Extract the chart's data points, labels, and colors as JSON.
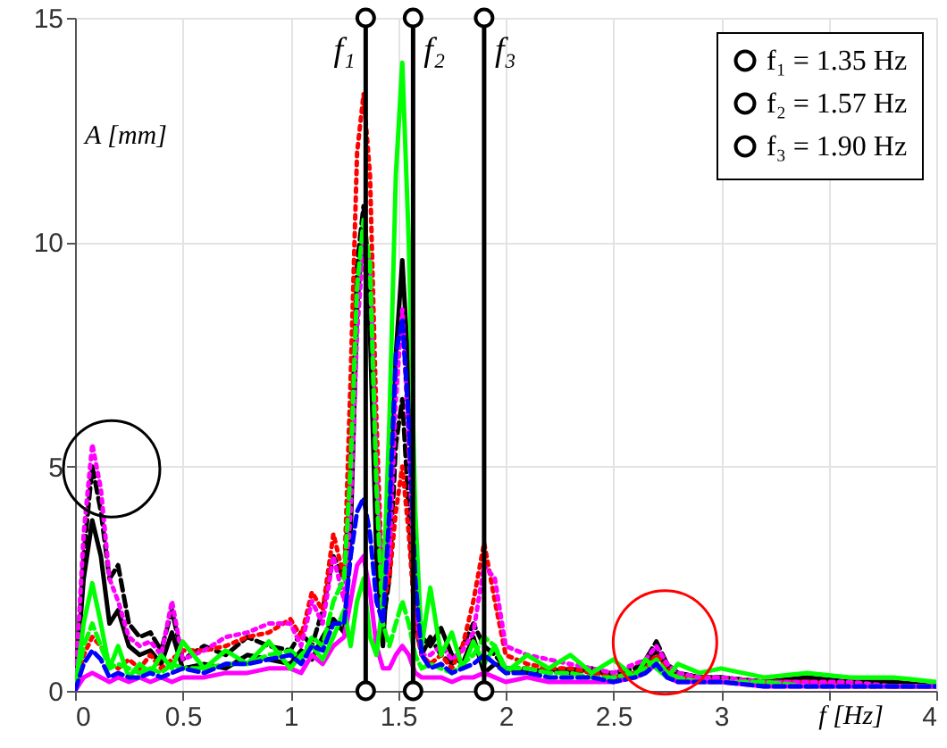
{
  "chart_data": {
    "type": "line",
    "xlabel": "f [Hz]",
    "ylabel": "A [mm]",
    "x": [
      0,
      0.04,
      0.08,
      0.12,
      0.16,
      0.2,
      0.25,
      0.3,
      0.35,
      0.4,
      0.45,
      0.5,
      0.6,
      0.7,
      0.8,
      0.9,
      1.0,
      1.05,
      1.1,
      1.15,
      1.2,
      1.25,
      1.28,
      1.31,
      1.34,
      1.37,
      1.4,
      1.43,
      1.46,
      1.49,
      1.52,
      1.55,
      1.58,
      1.61,
      1.65,
      1.7,
      1.75,
      1.8,
      1.85,
      1.9,
      1.95,
      2.0,
      2.1,
      2.2,
      2.3,
      2.4,
      2.5,
      2.6,
      2.65,
      2.7,
      2.75,
      2.8,
      2.9,
      3.0,
      3.2,
      3.4,
      3.6,
      3.8,
      4.0
    ],
    "series": [
      {
        "color": "#000000",
        "line_style": "solid",
        "values": [
          0,
          2.5,
          3.8,
          3.0,
          1.5,
          1.8,
          1.0,
          0.8,
          0.9,
          0.6,
          1.3,
          0.5,
          0.6,
          0.5,
          0.8,
          0.7,
          0.6,
          0.9,
          0.7,
          1.2,
          1.6,
          1.3,
          3.5,
          8.5,
          10.5,
          8.0,
          3.0,
          1.0,
          3.5,
          7.5,
          9.6,
          7.0,
          3.0,
          1.2,
          1.0,
          1.4,
          0.8,
          0.6,
          1.2,
          0.4,
          0.6,
          0.5,
          0.4,
          0.5,
          0.4,
          0.5,
          0.3,
          0.4,
          0.6,
          0.9,
          0.5,
          0.4,
          0.3,
          0.3,
          0.2,
          0.3,
          0.2,
          0.2,
          0.1
        ]
      },
      {
        "color": "#000000",
        "line_style": "dashed",
        "values": [
          0,
          3.0,
          5.0,
          4.0,
          2.5,
          2.8,
          1.5,
          1.2,
          1.3,
          0.9,
          1.8,
          0.7,
          1.0,
          0.8,
          1.2,
          1.0,
          0.9,
          1.3,
          1.0,
          1.8,
          3.0,
          2.5,
          5.0,
          9.5,
          10.8,
          9.0,
          4.0,
          1.5,
          2.5,
          5.5,
          6.5,
          4.0,
          1.5,
          0.8,
          1.2,
          0.8,
          0.6,
          1.0,
          1.5,
          1.0,
          0.8,
          0.5,
          0.5,
          0.4,
          0.5,
          0.4,
          0.4,
          0.5,
          0.7,
          1.1,
          0.6,
          0.4,
          0.3,
          0.3,
          0.2,
          0.2,
          0.2,
          0.1,
          0.1
        ]
      },
      {
        "color": "#ff0000",
        "line_style": "dotted",
        "values": [
          0,
          0.8,
          1.2,
          1.0,
          0.6,
          0.5,
          0.7,
          0.5,
          0.8,
          0.5,
          0.7,
          0.9,
          0.9,
          1.0,
          1.2,
          1.3,
          1.6,
          1.2,
          2.2,
          1.8,
          3.5,
          2.5,
          7.0,
          12.0,
          13.3,
          11.5,
          6.0,
          2.0,
          2.5,
          4.0,
          5.0,
          3.5,
          1.5,
          0.8,
          0.6,
          0.8,
          0.5,
          1.0,
          2.0,
          3.3,
          2.0,
          0.8,
          0.6,
          0.5,
          0.5,
          0.4,
          0.3,
          0.4,
          0.5,
          0.8,
          0.5,
          0.3,
          0.3,
          0.2,
          0.2,
          0.2,
          0.1,
          0.1,
          0.1
        ]
      },
      {
        "color": "#ff00ff",
        "line_style": "dotted",
        "values": [
          0,
          3.5,
          5.5,
          4.5,
          2.5,
          2.0,
          1.2,
          1.0,
          1.1,
          0.8,
          2.0,
          0.7,
          0.9,
          1.2,
          1.3,
          1.5,
          1.5,
          1.0,
          2.0,
          1.5,
          3.0,
          2.0,
          4.0,
          8.0,
          10.0,
          9.5,
          5.0,
          2.0,
          3.0,
          6.5,
          8.5,
          5.5,
          2.0,
          0.8,
          0.8,
          1.0,
          0.7,
          0.9,
          1.3,
          2.8,
          2.5,
          1.0,
          0.8,
          0.7,
          0.6,
          0.5,
          0.4,
          0.6,
          0.7,
          1.0,
          0.6,
          0.4,
          0.3,
          0.3,
          0.2,
          0.2,
          0.2,
          0.1,
          0.1
        ]
      },
      {
        "color": "#00ff00",
        "line_style": "dashed",
        "values": [
          0,
          1.0,
          1.5,
          1.0,
          0.5,
          0.6,
          0.5,
          0.4,
          0.5,
          0.4,
          0.6,
          0.5,
          0.5,
          0.6,
          0.6,
          0.8,
          0.9,
          0.7,
          1.2,
          1.0,
          2.0,
          2.5,
          5.0,
          9.0,
          10.5,
          9.5,
          4.5,
          1.5,
          1.0,
          1.5,
          2.0,
          1.5,
          0.8,
          0.5,
          0.6,
          0.5,
          0.4,
          0.6,
          0.8,
          1.2,
          1.0,
          0.5,
          0.5,
          0.4,
          0.4,
          0.3,
          0.3,
          0.4,
          0.5,
          0.7,
          0.4,
          0.3,
          0.2,
          0.2,
          0.2,
          0.1,
          0.1,
          0.1,
          0.1
        ]
      },
      {
        "color": "#ff00ff",
        "line_style": "solid",
        "values": [
          0,
          0.3,
          0.4,
          0.3,
          0.2,
          0.3,
          0.2,
          0.3,
          0.2,
          0.3,
          0.2,
          0.3,
          0.3,
          0.4,
          0.4,
          0.5,
          0.5,
          0.4,
          0.8,
          0.6,
          1.0,
          1.2,
          2.0,
          2.8,
          3.0,
          2.2,
          1.0,
          0.5,
          0.5,
          0.8,
          1.0,
          0.8,
          0.4,
          0.3,
          0.3,
          0.3,
          0.2,
          0.3,
          0.3,
          0.4,
          0.3,
          0.2,
          0.3,
          0.2,
          0.2,
          0.2,
          0.2,
          0.3,
          0.4,
          0.6,
          0.3,
          0.2,
          0.2,
          0.2,
          0.1,
          0.1,
          0.1,
          0.1,
          0.1
        ]
      },
      {
        "color": "#00ff00",
        "line_style": "solid",
        "values": [
          0,
          1.5,
          2.4,
          1.5,
          0.5,
          1.0,
          0.3,
          0.6,
          0.4,
          0.8,
          0.5,
          1.1,
          0.5,
          0.9,
          0.6,
          1.1,
          0.5,
          0.8,
          1.0,
          0.7,
          1.2,
          1.8,
          1.0,
          2.0,
          2.5,
          1.2,
          0.8,
          2.0,
          6.0,
          11.5,
          14.0,
          10.0,
          4.0,
          1.0,
          2.3,
          0.8,
          1.3,
          0.5,
          1.1,
          0.6,
          1.0,
          0.4,
          0.8,
          0.5,
          0.8,
          0.4,
          0.7,
          0.3,
          0.7,
          0.5,
          0.3,
          0.6,
          0.4,
          0.5,
          0.3,
          0.4,
          0.3,
          0.3,
          0.2
        ]
      },
      {
        "color": "#0000ff",
        "line_style": "dashed",
        "values": [
          0,
          0.6,
          0.9,
          0.7,
          0.3,
          0.4,
          0.3,
          0.3,
          0.4,
          0.3,
          0.4,
          0.5,
          0.4,
          0.6,
          0.6,
          0.7,
          0.8,
          0.6,
          1.0,
          0.9,
          1.5,
          1.5,
          3.0,
          4.0,
          4.3,
          3.5,
          2.0,
          1.5,
          4.0,
          7.5,
          8.3,
          6.0,
          2.5,
          0.8,
          0.5,
          0.6,
          0.4,
          0.5,
          0.6,
          0.8,
          0.6,
          0.4,
          0.4,
          0.3,
          0.3,
          0.3,
          0.2,
          0.3,
          0.4,
          0.6,
          0.3,
          0.2,
          0.2,
          0.2,
          0.1,
          0.1,
          0.1,
          0.1,
          0.1
        ]
      },
      {
        "name": "f₁ = 1.35 Hz",
        "color": "#000000",
        "line_style": "solid",
        "marker": "circle",
        "x": [
          1.35,
          1.35
        ],
        "values": [
          0,
          15
        ]
      },
      {
        "name": "f₂ = 1.57 Hz",
        "color": "#000000",
        "line_style": "solid",
        "marker": "circle",
        "x": [
          1.57,
          1.57
        ],
        "values": [
          0,
          15
        ]
      },
      {
        "name": "f₃ = 1.90 Hz",
        "color": "#000000",
        "line_style": "solid",
        "marker": "circle",
        "x": [
          1.9,
          1.9
        ],
        "values": [
          0,
          15
        ]
      }
    ],
    "annotations": [
      "f₁",
      "f₂",
      "f₃"
    ],
    "xlim": [
      0,
      4
    ],
    "xticks": [
      0,
      0.5,
      1,
      1.5,
      2,
      2.5,
      3,
      {
        "value": 3.5,
        "label": null
      },
      4
    ],
    "ylim": [
      0,
      15
    ],
    "yticks": [
      0,
      5,
      10,
      15
    ],
    "grid": true,
    "legend": "top right"
  }
}
